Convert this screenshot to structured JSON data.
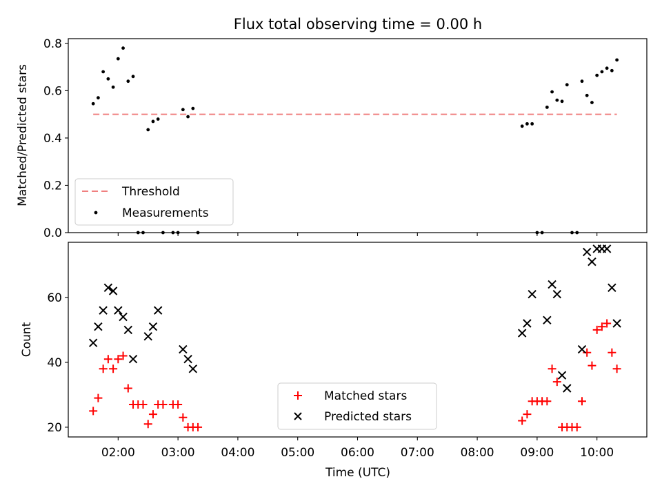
{
  "chart_data": [
    {
      "type": "scatter",
      "title": "Flux total observing time = 0.00 h",
      "xlabel": "",
      "ylabel": "Matched/Predicted stars",
      "xlim": [
        "01:10",
        "10:50"
      ],
      "ylim": [
        0,
        0.82
      ],
      "yticks": [
        "0.0",
        "0.2",
        "0.4",
        "0.6",
        "0.8"
      ],
      "legend_position": "lower-left",
      "series": [
        {
          "name": "Threshold",
          "kind": "dashed-line",
          "color": "#f08080",
          "x": [
            "01:35",
            "10:20"
          ],
          "y": [
            0.5,
            0.5
          ]
        },
        {
          "name": "Measurements",
          "kind": "points",
          "color": "#000000",
          "x": [
            "01:35",
            "01:40",
            "01:45",
            "01:50",
            "01:55",
            "02:00",
            "02:05",
            "02:10",
            "02:15",
            "02:20",
            "02:25",
            "02:30",
            "02:35",
            "02:40",
            "02:45",
            "02:55",
            "03:00",
            "03:05",
            "03:10",
            "03:15",
            "03:20",
            "08:45",
            "08:50",
            "08:55",
            "09:00",
            "09:05",
            "09:10",
            "09:15",
            "09:20",
            "09:25",
            "09:30",
            "09:35",
            "09:40",
            "09:45",
            "09:50",
            "09:55",
            "10:00",
            "10:05",
            "10:10",
            "10:15",
            "10:20"
          ],
          "y": [
            0.545,
            0.57,
            0.68,
            0.65,
            0.615,
            0.735,
            0.78,
            0.64,
            0.66,
            0.0,
            0.0,
            0.435,
            0.47,
            0.48,
            0.0,
            0.0,
            0.0,
            0.52,
            0.49,
            0.525,
            0.0,
            0.45,
            0.46,
            0.46,
            0.0,
            0.0,
            0.53,
            0.595,
            0.56,
            0.555,
            0.625,
            0.0,
            0.0,
            0.64,
            0.58,
            0.55,
            0.665,
            0.68,
            0.695,
            0.685,
            0.73
          ]
        }
      ]
    },
    {
      "type": "scatter",
      "title": "",
      "xlabel": "Time (UTC)",
      "ylabel": "Count",
      "xlim": [
        "01:10",
        "10:50"
      ],
      "ylim": [
        17,
        77
      ],
      "yticks": [
        "20",
        "40",
        "60"
      ],
      "xticks": [
        "02:00",
        "03:00",
        "04:00",
        "05:00",
        "06:00",
        "07:00",
        "08:00",
        "09:00",
        "10:00"
      ],
      "legend_position": "lower-center",
      "series": [
        {
          "name": "Matched stars",
          "marker": "plus",
          "color": "#ff0000",
          "x": [
            "01:35",
            "01:40",
            "01:45",
            "01:50",
            "01:55",
            "02:00",
            "02:05",
            "02:10",
            "02:15",
            "02:20",
            "02:25",
            "02:30",
            "02:35",
            "02:40",
            "02:45",
            "02:55",
            "03:00",
            "03:05",
            "03:10",
            "03:15",
            "03:20",
            "08:45",
            "08:50",
            "08:55",
            "09:00",
            "09:05",
            "09:10",
            "09:15",
            "09:20",
            "09:25",
            "09:30",
            "09:35",
            "09:40",
            "09:45",
            "09:50",
            "09:55",
            "10:00",
            "10:05",
            "10:10",
            "10:15",
            "10:20"
          ],
          "y": [
            25,
            29,
            38,
            41,
            38,
            41,
            42,
            32,
            27,
            27,
            27,
            21,
            24,
            27,
            27,
            27,
            27,
            23,
            20,
            20,
            20,
            22,
            24,
            28,
            28,
            28,
            28,
            38,
            34,
            20,
            20,
            20,
            20,
            28,
            43,
            39,
            50,
            51,
            52,
            43,
            38
          ]
        },
        {
          "name": "Predicted stars",
          "marker": "x",
          "color": "#000000",
          "x": [
            "01:35",
            "01:40",
            "01:45",
            "01:50",
            "01:55",
            "02:00",
            "02:05",
            "02:10",
            "02:15",
            "02:30",
            "02:35",
            "02:40",
            "03:05",
            "03:10",
            "03:15",
            "08:45",
            "08:50",
            "08:55",
            "09:10",
            "09:15",
            "09:20",
            "09:25",
            "09:30",
            "09:45",
            "09:50",
            "09:55",
            "10:00",
            "10:05",
            "10:10",
            "10:15",
            "10:20"
          ],
          "y": [
            46,
            51,
            56,
            63,
            62,
            56,
            54,
            50,
            41,
            48,
            51,
            56,
            44,
            41,
            38,
            49,
            52,
            61,
            53,
            64,
            61,
            36,
            32,
            44,
            74,
            71,
            75,
            75,
            75,
            63,
            52
          ]
        }
      ]
    }
  ]
}
